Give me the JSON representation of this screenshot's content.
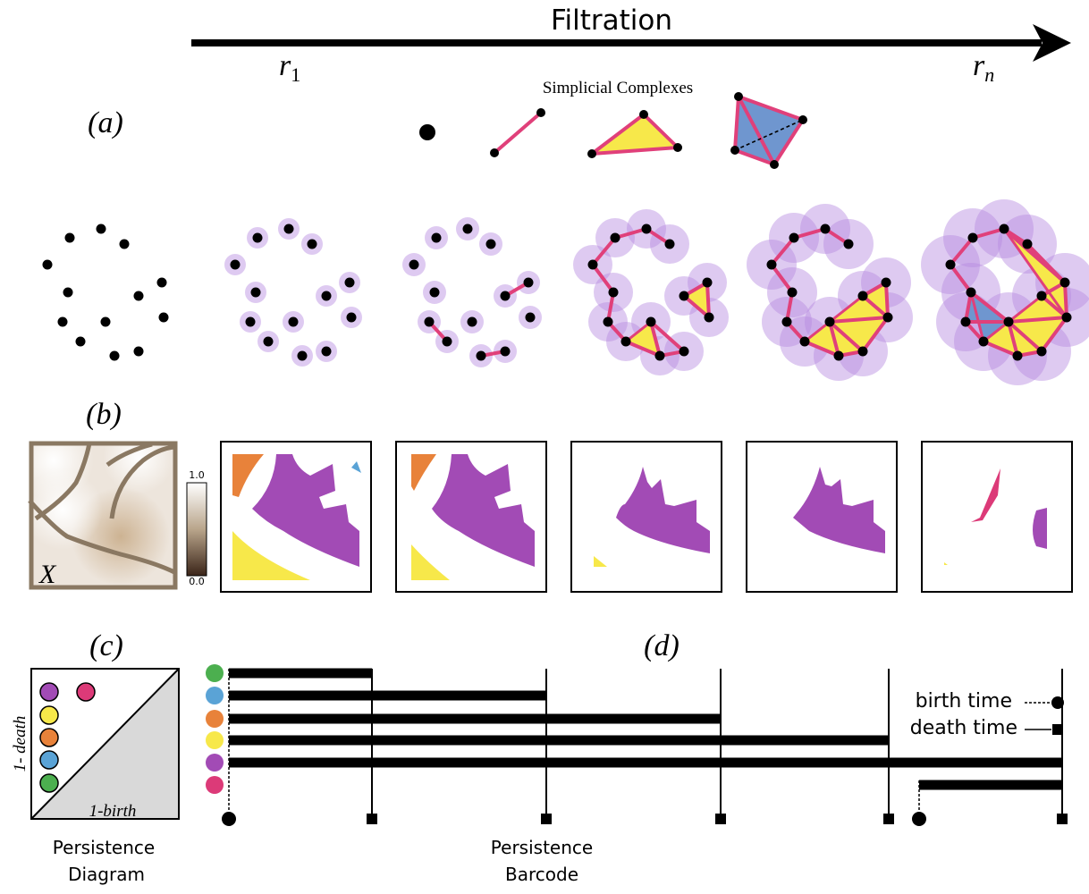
{
  "header": {
    "title": "Filtration",
    "r_start": "r",
    "r_start_sub": "1",
    "r_end": "r",
    "r_end_sub": "n"
  },
  "panel_a": {
    "label": "(a)",
    "complexes_title": "Simplicial Complexes"
  },
  "panel_b": {
    "label": "(b)",
    "field_label": "X",
    "colorbar_max": "1.0",
    "colorbar_min": "0.0"
  },
  "panel_c": {
    "label": "(c)",
    "y_axis": "1- death",
    "x_axis": "1-birth",
    "caption_line1": "Persistence",
    "caption_line2": "Diagram"
  },
  "panel_d": {
    "label": "(d)",
    "legend_birth": "birth time",
    "legend_death": "death time",
    "caption_line1": "Persistence",
    "caption_line2": "Barcode"
  },
  "colors": {
    "green": "#4caf4f",
    "blue": "#5aa3d6",
    "orange": "#e8823a",
    "yellow": "#f7e84a",
    "purple": "#a24bb5",
    "pink": "#dc3a78",
    "halo": "#b68ae0",
    "edge": "#e0407a",
    "tet_blue": "#6f96cf"
  }
}
